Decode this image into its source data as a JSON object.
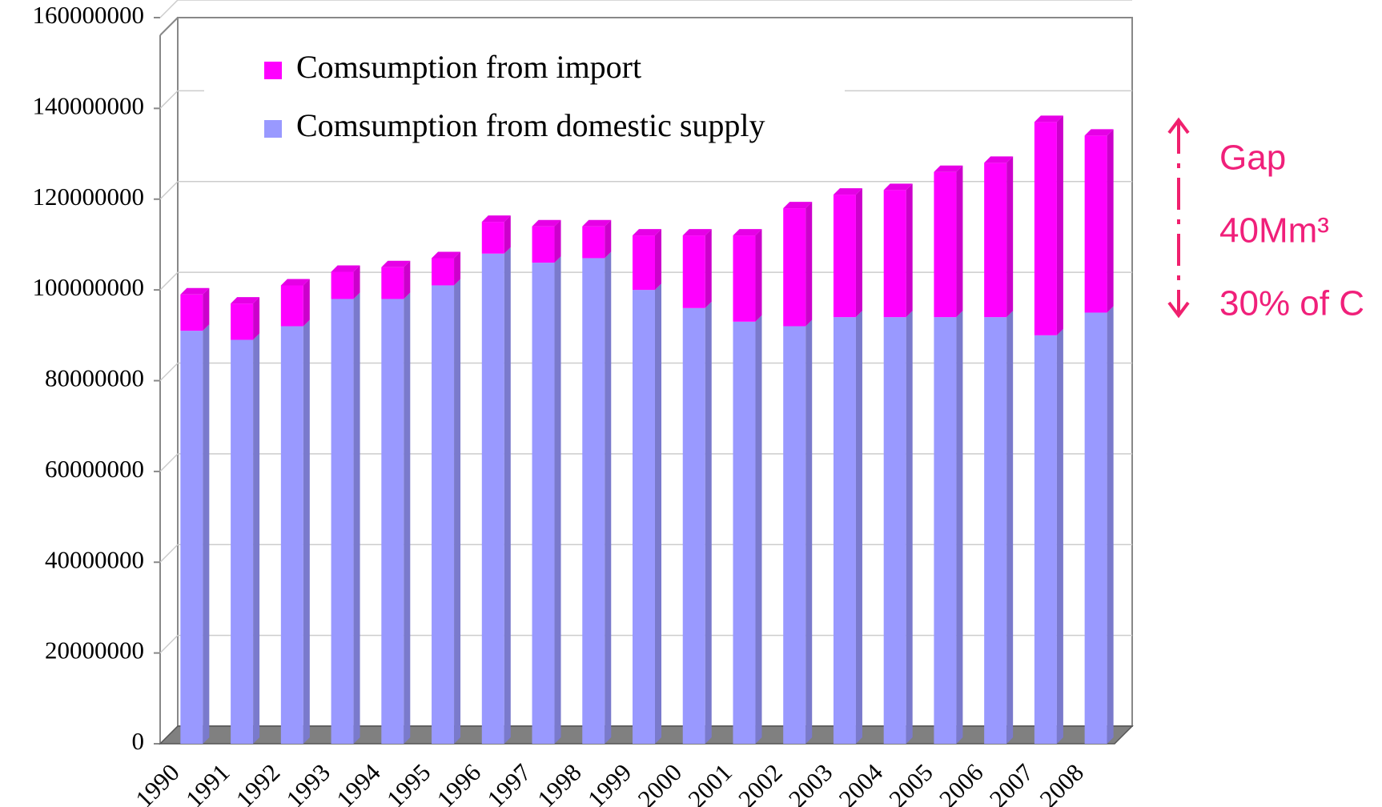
{
  "chart_data": {
    "type": "stacked-bar",
    "categories": [
      "1990",
      "1991",
      "1992",
      "1993",
      "1994",
      "1995",
      "1996",
      "1997",
      "1998",
      "1999",
      "2000",
      "2001",
      "2002",
      "2003",
      "2004",
      "2005",
      "2006",
      "2007",
      "2008"
    ],
    "series": [
      {
        "name": "Comsumption from domestic supply",
        "color": "#9999ff",
        "values": [
          91000000,
          89000000,
          92000000,
          98000000,
          98000000,
          101000000,
          108000000,
          106000000,
          107000000,
          100000000,
          96000000,
          93000000,
          92000000,
          94000000,
          94000000,
          94000000,
          94000000,
          90000000,
          95000000
        ]
      },
      {
        "name": "Comsumption from import",
        "color": "#ff00ff",
        "values": [
          8000000,
          8000000,
          9000000,
          6000000,
          7000000,
          6000000,
          7000000,
          8000000,
          7000000,
          12000000,
          16000000,
          19000000,
          26000000,
          27000000,
          28000000,
          32000000,
          34000000,
          47000000,
          39000000
        ]
      }
    ],
    "ylim": [
      0,
      160000000
    ],
    "yticks": [
      0,
      20000000,
      40000000,
      60000000,
      80000000,
      100000000,
      120000000,
      140000000,
      160000000
    ],
    "grid": true,
    "annotations": [
      "Gap",
      "40Mm³",
      "30% of C"
    ],
    "annotation_color": "#f0207a"
  }
}
